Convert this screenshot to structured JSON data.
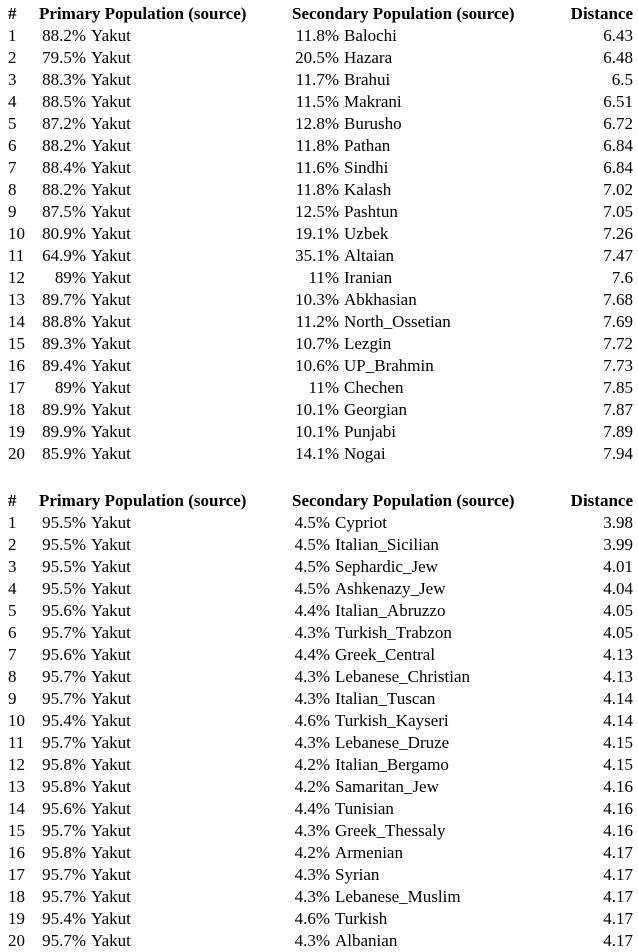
{
  "page": {
    "background_color": "#ffffff",
    "text_color": "#000000"
  },
  "tables": [
    {
      "headers": {
        "num": "#",
        "primary": "Primary Population (source)",
        "secondary": "Secondary Population (source)",
        "distance": "Distance"
      },
      "rows": [
        {
          "num": "1",
          "primary_pct": "88.2%",
          "primary_name": "Yakut",
          "secondary_pct": "11.8%",
          "secondary_name": "Balochi",
          "distance": "6.43"
        },
        {
          "num": "2",
          "primary_pct": "79.5%",
          "primary_name": "Yakut",
          "secondary_pct": "20.5%",
          "secondary_name": "Hazara",
          "distance": "6.48"
        },
        {
          "num": "3",
          "primary_pct": "88.3%",
          "primary_name": "Yakut",
          "secondary_pct": "11.7%",
          "secondary_name": "Brahui",
          "distance": "6.5"
        },
        {
          "num": "4",
          "primary_pct": "88.5%",
          "primary_name": "Yakut",
          "secondary_pct": "11.5%",
          "secondary_name": "Makrani",
          "distance": "6.51"
        },
        {
          "num": "5",
          "primary_pct": "87.2%",
          "primary_name": "Yakut",
          "secondary_pct": "12.8%",
          "secondary_name": "Burusho",
          "distance": "6.72"
        },
        {
          "num": "6",
          "primary_pct": "88.2%",
          "primary_name": "Yakut",
          "secondary_pct": "11.8%",
          "secondary_name": "Pathan",
          "distance": "6.84"
        },
        {
          "num": "7",
          "primary_pct": "88.4%",
          "primary_name": "Yakut",
          "secondary_pct": "11.6%",
          "secondary_name": "Sindhi",
          "distance": "6.84"
        },
        {
          "num": "8",
          "primary_pct": "88.2%",
          "primary_name": "Yakut",
          "secondary_pct": "11.8%",
          "secondary_name": "Kalash",
          "distance": "7.02"
        },
        {
          "num": "9",
          "primary_pct": "87.5%",
          "primary_name": "Yakut",
          "secondary_pct": "12.5%",
          "secondary_name": "Pashtun",
          "distance": "7.05"
        },
        {
          "num": "10",
          "primary_pct": "80.9%",
          "primary_name": "Yakut",
          "secondary_pct": "19.1%",
          "secondary_name": "Uzbek",
          "distance": "7.26"
        },
        {
          "num": "11",
          "primary_pct": "64.9%",
          "primary_name": "Yakut",
          "secondary_pct": "35.1%",
          "secondary_name": "Altaian",
          "distance": "7.47"
        },
        {
          "num": "12",
          "primary_pct": "89%",
          "primary_name": "Yakut",
          "secondary_pct": "11%",
          "secondary_name": "Iranian",
          "distance": "7.6"
        },
        {
          "num": "13",
          "primary_pct": "89.7%",
          "primary_name": "Yakut",
          "secondary_pct": "10.3%",
          "secondary_name": "Abkhasian",
          "distance": "7.68"
        },
        {
          "num": "14",
          "primary_pct": "88.8%",
          "primary_name": "Yakut",
          "secondary_pct": "11.2%",
          "secondary_name": "North_Ossetian",
          "distance": "7.69"
        },
        {
          "num": "15",
          "primary_pct": "89.3%",
          "primary_name": "Yakut",
          "secondary_pct": "10.7%",
          "secondary_name": "Lezgin",
          "distance": "7.72"
        },
        {
          "num": "16",
          "primary_pct": "89.4%",
          "primary_name": "Yakut",
          "secondary_pct": "10.6%",
          "secondary_name": "UP_Brahmin",
          "distance": "7.73"
        },
        {
          "num": "17",
          "primary_pct": "89%",
          "primary_name": "Yakut",
          "secondary_pct": "11%",
          "secondary_name": "Chechen",
          "distance": "7.85"
        },
        {
          "num": "18",
          "primary_pct": "89.9%",
          "primary_name": "Yakut",
          "secondary_pct": "10.1%",
          "secondary_name": "Georgian",
          "distance": "7.87"
        },
        {
          "num": "19",
          "primary_pct": "89.9%",
          "primary_name": "Yakut",
          "secondary_pct": "10.1%",
          "secondary_name": "Punjabi",
          "distance": "7.89"
        },
        {
          "num": "20",
          "primary_pct": "85.9%",
          "primary_name": "Yakut",
          "secondary_pct": "14.1%",
          "secondary_name": "Nogai",
          "distance": "7.94"
        }
      ]
    },
    {
      "headers": {
        "num": "#",
        "primary": "Primary Population (source)",
        "secondary": "Secondary Population (source)",
        "distance": "Distance"
      },
      "rows": [
        {
          "num": "1",
          "primary_pct": "95.5%",
          "primary_name": "Yakut",
          "secondary_pct": "4.5%",
          "secondary_name": "Cypriot",
          "distance": "3.98"
        },
        {
          "num": "2",
          "primary_pct": "95.5%",
          "primary_name": "Yakut",
          "secondary_pct": "4.5%",
          "secondary_name": "Italian_Sicilian",
          "distance": "3.99"
        },
        {
          "num": "3",
          "primary_pct": "95.5%",
          "primary_name": "Yakut",
          "secondary_pct": "4.5%",
          "secondary_name": "Sephardic_Jew",
          "distance": "4.01"
        },
        {
          "num": "4",
          "primary_pct": "95.5%",
          "primary_name": "Yakut",
          "secondary_pct": "4.5%",
          "secondary_name": "Ashkenazy_Jew",
          "distance": "4.04"
        },
        {
          "num": "5",
          "primary_pct": "95.6%",
          "primary_name": "Yakut",
          "secondary_pct": "4.4%",
          "secondary_name": "Italian_Abruzzo",
          "distance": "4.05"
        },
        {
          "num": "6",
          "primary_pct": "95.7%",
          "primary_name": "Yakut",
          "secondary_pct": "4.3%",
          "secondary_name": "Turkish_Trabzon",
          "distance": "4.05"
        },
        {
          "num": "7",
          "primary_pct": "95.6%",
          "primary_name": "Yakut",
          "secondary_pct": "4.4%",
          "secondary_name": "Greek_Central",
          "distance": "4.13"
        },
        {
          "num": "8",
          "primary_pct": "95.7%",
          "primary_name": "Yakut",
          "secondary_pct": "4.3%",
          "secondary_name": "Lebanese_Christian",
          "distance": "4.13"
        },
        {
          "num": "9",
          "primary_pct": "95.7%",
          "primary_name": "Yakut",
          "secondary_pct": "4.3%",
          "secondary_name": "Italian_Tuscan",
          "distance": "4.14"
        },
        {
          "num": "10",
          "primary_pct": "95.4%",
          "primary_name": "Yakut",
          "secondary_pct": "4.6%",
          "secondary_name": "Turkish_Kayseri",
          "distance": "4.14"
        },
        {
          "num": "11",
          "primary_pct": "95.7%",
          "primary_name": "Yakut",
          "secondary_pct": "4.3%",
          "secondary_name": "Lebanese_Druze",
          "distance": "4.15"
        },
        {
          "num": "12",
          "primary_pct": "95.8%",
          "primary_name": "Yakut",
          "secondary_pct": "4.2%",
          "secondary_name": "Italian_Bergamo",
          "distance": "4.15"
        },
        {
          "num": "13",
          "primary_pct": "95.8%",
          "primary_name": "Yakut",
          "secondary_pct": "4.2%",
          "secondary_name": "Samaritan_Jew",
          "distance": "4.16"
        },
        {
          "num": "14",
          "primary_pct": "95.6%",
          "primary_name": "Yakut",
          "secondary_pct": "4.4%",
          "secondary_name": "Tunisian",
          "distance": "4.16"
        },
        {
          "num": "15",
          "primary_pct": "95.7%",
          "primary_name": "Yakut",
          "secondary_pct": "4.3%",
          "secondary_name": "Greek_Thessaly",
          "distance": "4.16"
        },
        {
          "num": "16",
          "primary_pct": "95.8%",
          "primary_name": "Yakut",
          "secondary_pct": "4.2%",
          "secondary_name": "Armenian",
          "distance": "4.17"
        },
        {
          "num": "17",
          "primary_pct": "95.7%",
          "primary_name": "Yakut",
          "secondary_pct": "4.3%",
          "secondary_name": "Syrian",
          "distance": "4.17"
        },
        {
          "num": "18",
          "primary_pct": "95.7%",
          "primary_name": "Yakut",
          "secondary_pct": "4.3%",
          "secondary_name": "Lebanese_Muslim",
          "distance": "4.17"
        },
        {
          "num": "19",
          "primary_pct": "95.4%",
          "primary_name": "Yakut",
          "secondary_pct": "4.6%",
          "secondary_name": "Turkish",
          "distance": "4.17"
        },
        {
          "num": "20",
          "primary_pct": "95.7%",
          "primary_name": "Yakut",
          "secondary_pct": "4.3%",
          "secondary_name": "Albanian",
          "distance": "4.17"
        }
      ]
    }
  ]
}
